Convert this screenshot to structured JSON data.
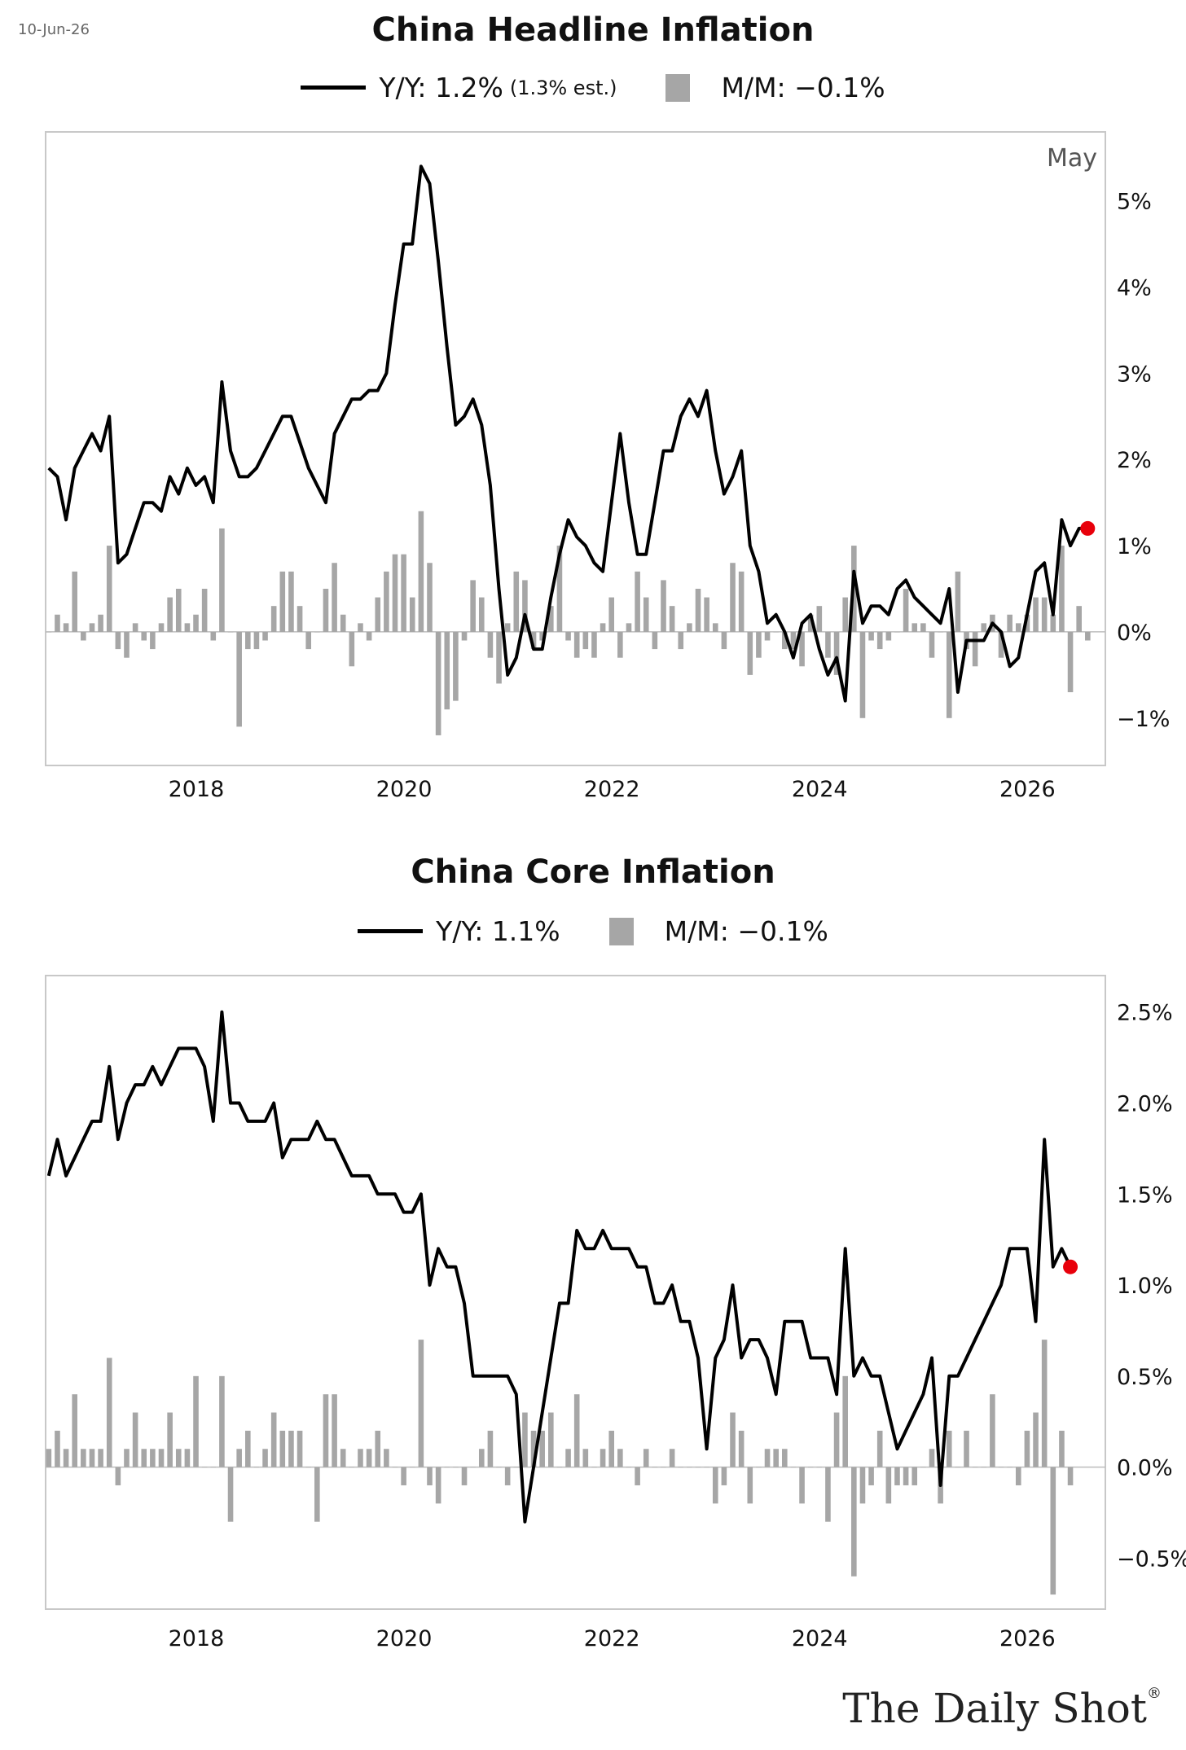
{
  "header": {
    "date": "10-Jun-26"
  },
  "branding": {
    "name": "The Daily Shot",
    "mark": "®"
  },
  "colors": {
    "line": "#000000",
    "bars": "#a6a6a6",
    "marker": "#e8000b",
    "frame": "#c8c8c8"
  },
  "chart_data": [
    {
      "type": "bar+line",
      "title": "China Headline Inflation",
      "legend": {
        "line_label": "Y/Y: 1.2%",
        "line_note": "(1.3% est.)",
        "bar_label": "M/M: −0.1%"
      },
      "annotation": "May",
      "ylim": [
        -1.55,
        5.8
      ],
      "yticks": [
        -1,
        0,
        1,
        2,
        3,
        4,
        5
      ],
      "ytick_labels": [
        "−1%",
        "0%",
        "1%",
        "2%",
        "3%",
        "4%",
        "5%"
      ],
      "xlim": [
        2016.55,
        2026.75
      ],
      "xticks": [
        2018,
        2020,
        2022,
        2024,
        2026
      ],
      "xtick_labels": [
        "2018",
        "2020",
        "2022",
        "2024",
        "2026"
      ],
      "start": 2016.58,
      "step": 0.0833333,
      "yoy": [
        1.9,
        1.8,
        1.3,
        1.9,
        2.1,
        2.3,
        2.1,
        2.5,
        0.8,
        0.9,
        1.2,
        1.5,
        1.5,
        1.4,
        1.8,
        1.6,
        1.9,
        1.7,
        1.8,
        1.5,
        2.9,
        2.1,
        1.8,
        1.8,
        1.9,
        2.1,
        2.3,
        2.5,
        2.5,
        2.2,
        1.9,
        1.7,
        1.5,
        2.3,
        2.5,
        2.7,
        2.7,
        2.8,
        2.8,
        3.0,
        3.8,
        4.5,
        4.5,
        5.4,
        5.2,
        4.3,
        3.3,
        2.4,
        2.5,
        2.7,
        2.4,
        1.7,
        0.5,
        -0.5,
        -0.3,
        0.2,
        -0.2,
        -0.2,
        0.4,
        0.9,
        1.3,
        1.1,
        1.0,
        0.8,
        0.7,
        1.5,
        2.3,
        1.5,
        0.9,
        0.9,
        1.5,
        2.1,
        2.1,
        2.5,
        2.7,
        2.5,
        2.8,
        2.1,
        1.6,
        1.8,
        2.1,
        1.0,
        0.7,
        0.1,
        0.2,
        0.0,
        -0.3,
        0.1,
        0.2,
        -0.2,
        -0.5,
        -0.3,
        -0.8,
        0.7,
        0.1,
        0.3,
        0.3,
        0.2,
        0.5,
        0.6,
        0.4,
        0.3,
        0.2,
        0.1,
        0.5,
        -0.7,
        -0.1,
        -0.1,
        -0.1,
        0.1,
        0.0,
        -0.4,
        -0.3,
        0.2,
        0.7,
        0.8,
        0.2,
        1.3,
        1.0,
        1.2,
        1.2
      ],
      "mom": [
        0.0,
        0.2,
        0.1,
        0.7,
        -0.1,
        0.1,
        0.2,
        1.0,
        -0.2,
        -0.3,
        0.1,
        -0.1,
        -0.2,
        0.1,
        0.4,
        0.5,
        0.1,
        0.2,
        0.5,
        -0.1,
        1.2,
        0.0,
        -1.1,
        -0.2,
        -0.2,
        -0.1,
        0.3,
        0.7,
        0.7,
        0.3,
        -0.2,
        0.0,
        0.5,
        0.8,
        0.2,
        -0.4,
        0.1,
        -0.1,
        0.4,
        0.7,
        0.9,
        0.9,
        0.4,
        1.4,
        0.8,
        -1.2,
        -0.9,
        -0.8,
        -0.1,
        0.6,
        0.4,
        -0.3,
        -0.6,
        0.1,
        0.7,
        0.6,
        -0.2,
        -0.1,
        0.3,
        1.0,
        -0.1,
        -0.3,
        -0.2,
        -0.3,
        0.1,
        0.4,
        -0.3,
        0.1,
        0.7,
        0.4,
        -0.2,
        0.6,
        0.3,
        -0.2,
        0.1,
        0.5,
        0.4,
        0.1,
        -0.2,
        0.8,
        0.7,
        -0.5,
        -0.3,
        -0.1,
        0.0,
        -0.2,
        -0.2,
        -0.4,
        0.2,
        0.3,
        -0.3,
        -0.5,
        0.4,
        1.0,
        -1.0,
        -0.1,
        -0.2,
        -0.1,
        0.0,
        0.5,
        0.1,
        0.1,
        -0.3,
        0.0,
        -1.0,
        0.7,
        -0.2,
        -0.4,
        0.1,
        0.2,
        -0.3,
        0.2,
        0.1,
        0.2,
        0.4,
        0.4,
        0.2,
        1.0,
        -0.7,
        0.3,
        -0.1
      ],
      "highlight": {
        "label": "latest",
        "value": 1.2
      }
    },
    {
      "type": "bar+line",
      "title": "China Core Inflation",
      "legend": {
        "line_label": "Y/Y: 1.1%",
        "bar_label": "M/M: −0.1%"
      },
      "ylim": [
        -0.78,
        2.7
      ],
      "yticks": [
        -0.5,
        0,
        0.5,
        1.0,
        1.5,
        2.0,
        2.5
      ],
      "ytick_labels": [
        "−0.5%",
        "0.0%",
        "0.5%",
        "1.0%",
        "1.5%",
        "2.0%",
        "2.5%"
      ],
      "xlim": [
        2016.55,
        2026.75
      ],
      "xticks": [
        2018,
        2020,
        2022,
        2024,
        2026
      ],
      "xtick_labels": [
        "2018",
        "2020",
        "2022",
        "2024",
        "2026"
      ],
      "start": 2016.58,
      "step": 0.0833333,
      "yoy": [
        1.6,
        1.8,
        1.6,
        1.7,
        1.8,
        1.9,
        1.9,
        2.2,
        1.8,
        2.0,
        2.1,
        2.1,
        2.2,
        2.1,
        2.2,
        2.3,
        2.3,
        2.3,
        2.2,
        1.9,
        2.5,
        2.0,
        2.0,
        1.9,
        1.9,
        1.9,
        2.0,
        1.7,
        1.8,
        1.8,
        1.8,
        1.9,
        1.8,
        1.8,
        1.7,
        1.6,
        1.6,
        1.6,
        1.5,
        1.5,
        1.5,
        1.4,
        1.4,
        1.5,
        1.0,
        1.2,
        1.1,
        1.1,
        0.9,
        0.5,
        0.5,
        0.5,
        0.5,
        0.5,
        0.4,
        -0.3,
        0.0,
        0.3,
        0.6,
        0.9,
        0.9,
        1.3,
        1.2,
        1.2,
        1.3,
        1.2,
        1.2,
        1.2,
        1.1,
        1.1,
        0.9,
        0.9,
        1.0,
        0.8,
        0.8,
        0.6,
        0.1,
        0.6,
        0.7,
        1.0,
        0.6,
        0.7,
        0.7,
        0.6,
        0.4,
        0.8,
        0.8,
        0.8,
        0.6,
        0.6,
        0.6,
        0.4,
        1.2,
        0.5,
        0.6,
        0.5,
        0.5,
        0.3,
        0.1,
        0.2,
        0.3,
        0.4,
        0.6,
        -0.1,
        0.5,
        0.5,
        0.6,
        0.7,
        0.8,
        0.9,
        1.0,
        1.2,
        1.2,
        1.2,
        0.8,
        1.8,
        1.1,
        1.2,
        1.1
      ],
      "mom": [
        0.1,
        0.2,
        0.1,
        0.4,
        0.1,
        0.1,
        0.1,
        0.6,
        -0.1,
        0.1,
        0.3,
        0.1,
        0.1,
        0.1,
        0.3,
        0.1,
        0.1,
        0.5,
        0.0,
        0.0,
        0.5,
        -0.3,
        0.1,
        0.2,
        0.0,
        0.1,
        0.3,
        0.2,
        0.2,
        0.2,
        0.0,
        -0.3,
        0.4,
        0.4,
        0.1,
        0.0,
        0.1,
        0.1,
        0.2,
        0.1,
        0.0,
        -0.1,
        0.0,
        0.7,
        -0.1,
        -0.2,
        0.0,
        0.0,
        -0.1,
        0.0,
        0.1,
        0.2,
        0.0,
        -0.1,
        0.0,
        0.3,
        0.2,
        0.2,
        0.3,
        0.0,
        0.1,
        0.4,
        0.1,
        0.0,
        0.1,
        0.2,
        0.1,
        0.0,
        -0.1,
        0.1,
        0.0,
        0.0,
        0.1,
        0.0,
        0.0,
        0.0,
        0.0,
        -0.2,
        -0.1,
        0.3,
        0.2,
        -0.2,
        0.0,
        0.1,
        0.1,
        0.1,
        0.0,
        -0.2,
        0.0,
        0.0,
        -0.3,
        0.3,
        0.5,
        -0.6,
        -0.2,
        -0.1,
        0.2,
        -0.2,
        -0.1,
        -0.1,
        -0.1,
        0.0,
        0.1,
        -0.2,
        0.2,
        0.0,
        0.2,
        0.0,
        0.0,
        0.4,
        0.0,
        0.0,
        -0.1,
        0.2,
        0.3,
        0.7,
        -0.7,
        0.2,
        -0.1
      ],
      "highlight": {
        "label": "latest",
        "value": 1.1
      }
    }
  ]
}
